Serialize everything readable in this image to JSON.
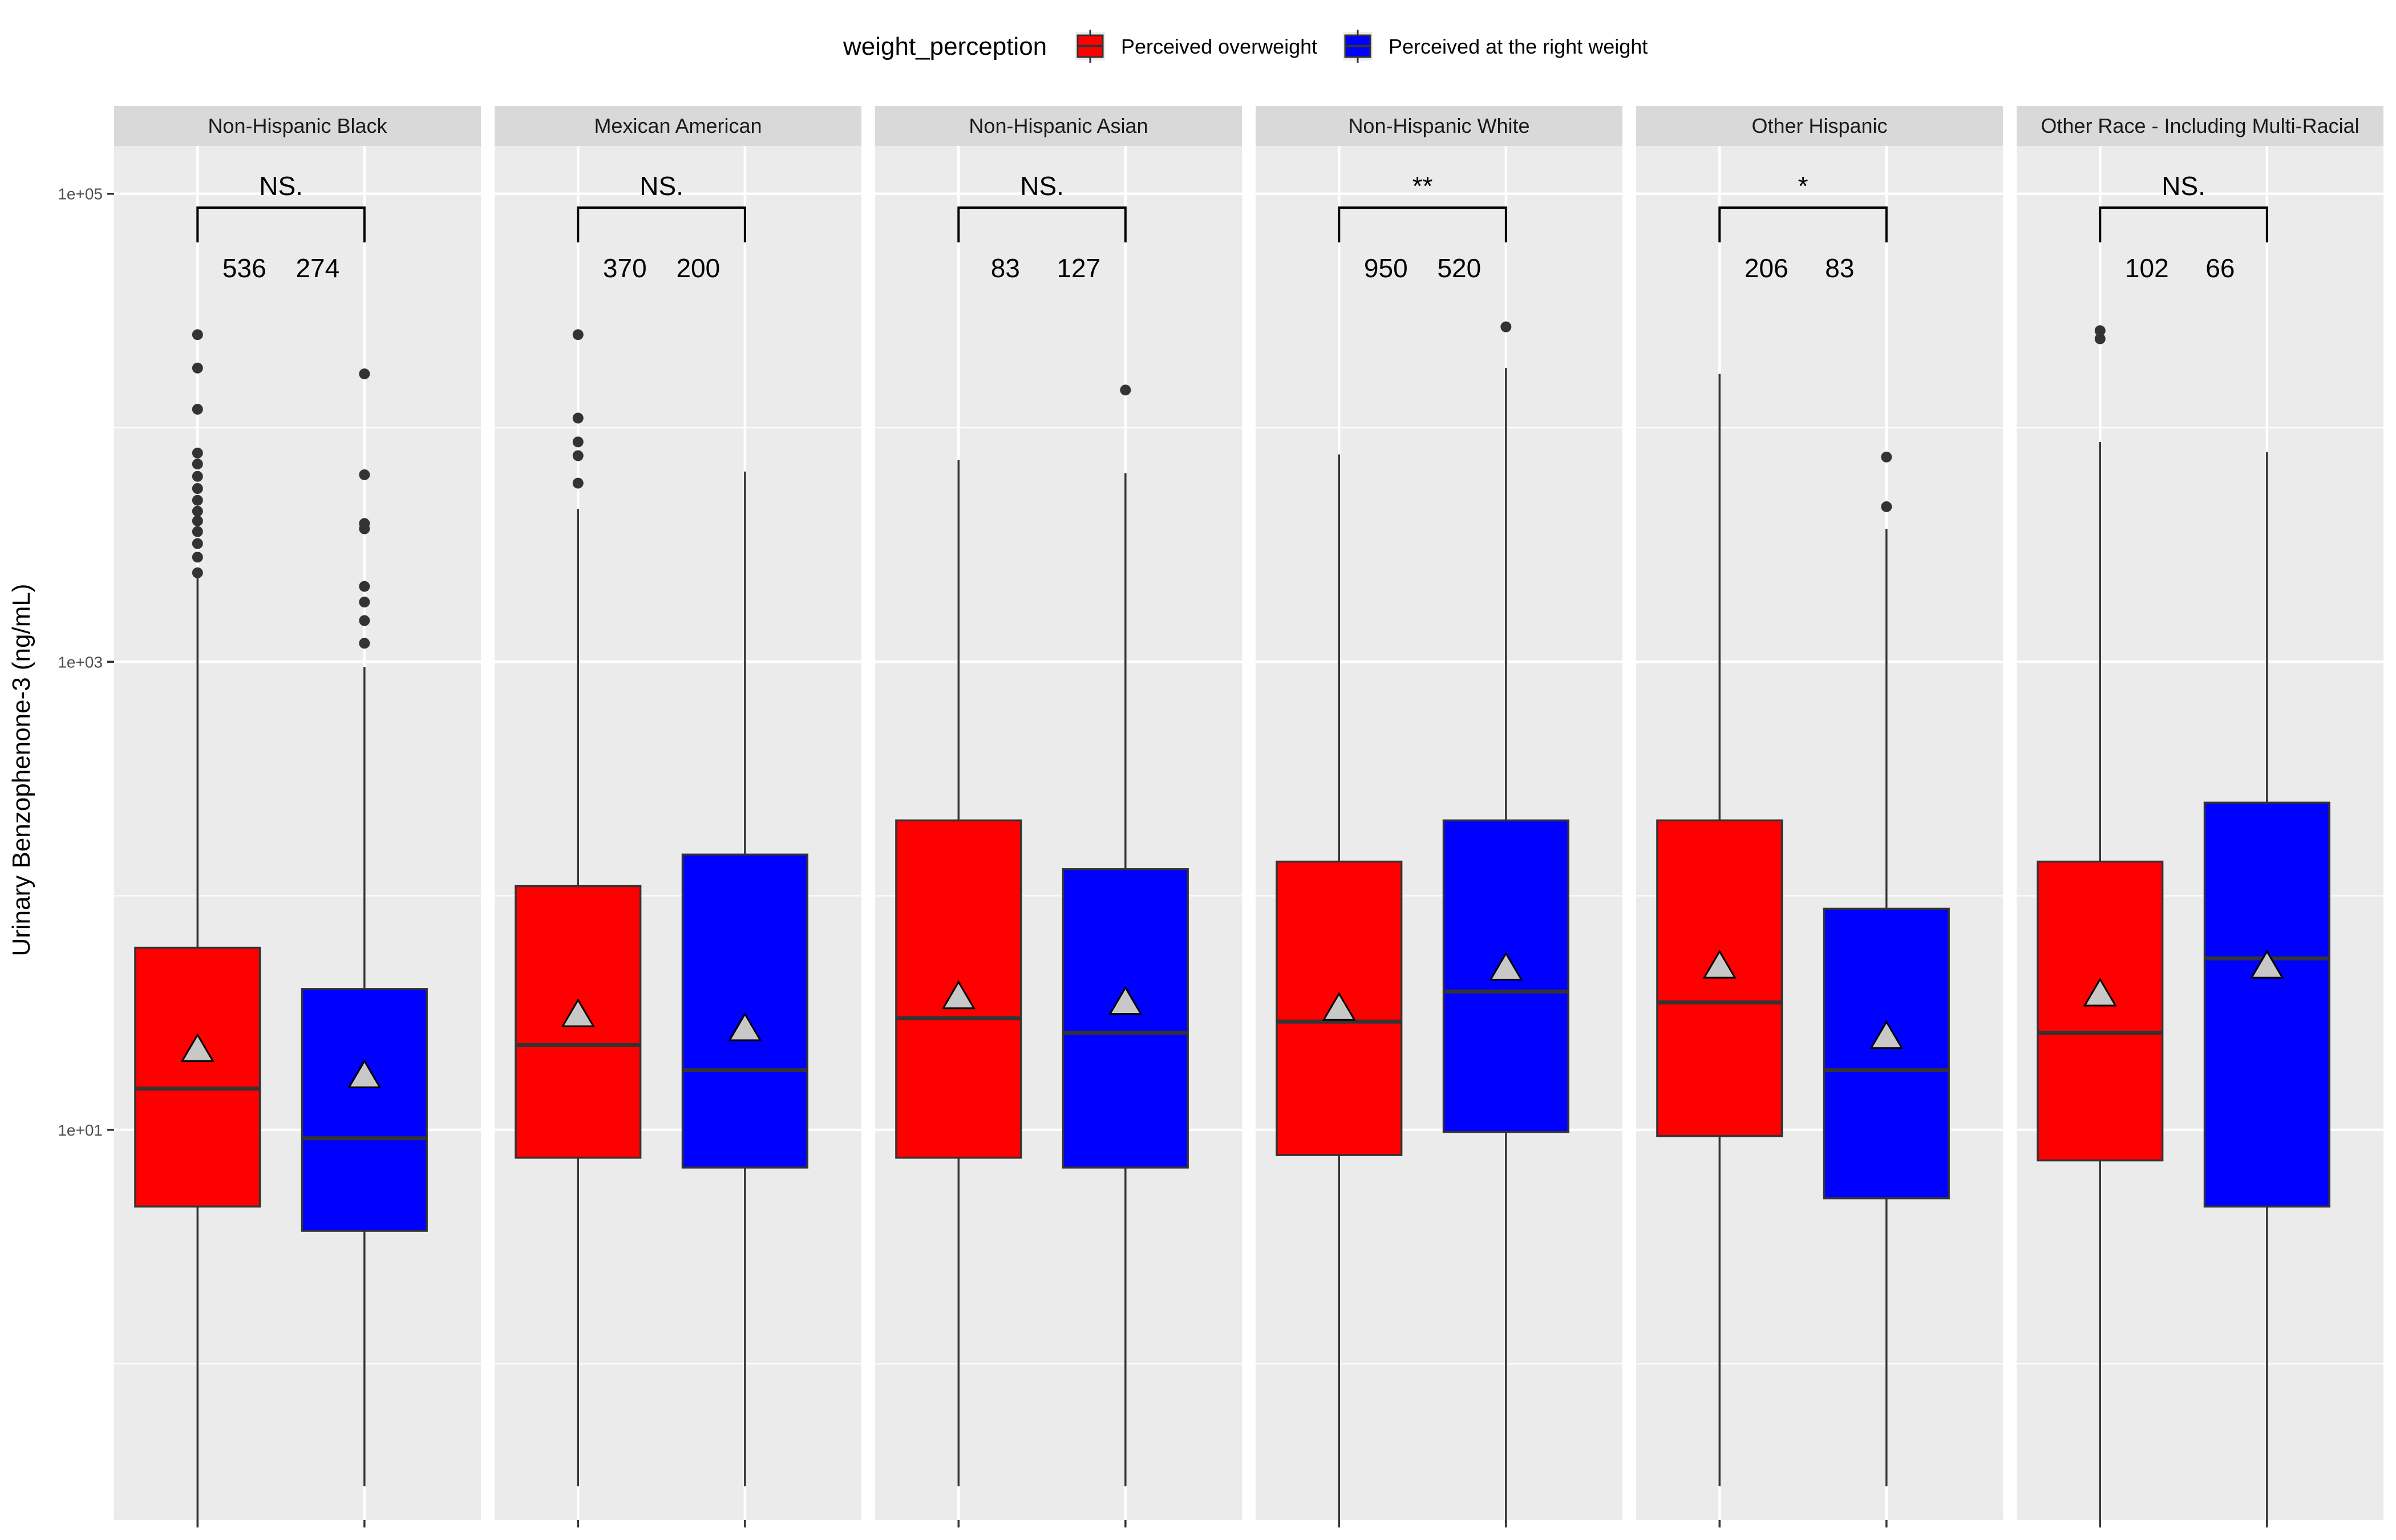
{
  "chart_data": {
    "type": "box",
    "ylabel": "Urinary Benzophenone-3 (ng/mL)",
    "xlabel": "",
    "yscale": "log10",
    "ylim": [
      0.215,
      160000
    ],
    "yticks": [
      10,
      1000,
      100000
    ],
    "ytick_labels": [
      "1e+01",
      "1e+03",
      "1e+05"
    ],
    "grid": true,
    "legend": {
      "title": "weight_perception",
      "position": "top",
      "entries": [
        {
          "key": "overweight",
          "label": "Perceived overweight",
          "color": "#FF0000"
        },
        {
          "key": "right",
          "label": "Perceived at the right weight",
          "color": "#0000FF"
        }
      ]
    },
    "mean_marker": {
      "shape": "triangle",
      "color": "#c8c8c8"
    },
    "panels": [
      {
        "label": "Non-Hispanic Black",
        "significance": "NS.",
        "groups": [
          {
            "series": "overweight",
            "n": "536",
            "whisker_low": 0.21,
            "q1": 4.7,
            "median": 15,
            "q3": 60,
            "whisker_high": 2300,
            "mean": 22,
            "outliers": [
              2400,
              2800,
              3200,
              3600,
              4000,
              4400,
              4900,
              5500,
              6200,
              7000,
              7800,
              12000,
              18000,
              25000
            ]
          },
          {
            "series": "right",
            "n": "274",
            "whisker_low": 0.3,
            "q1": 3.7,
            "median": 9.2,
            "q3": 40,
            "whisker_high": 950,
            "mean": 17,
            "outliers": [
              1200,
              1500,
              1800,
              2100,
              3700,
              3900,
              6300,
              17000
            ]
          }
        ]
      },
      {
        "label": "Mexican American",
        "significance": "NS.",
        "groups": [
          {
            "series": "overweight",
            "n": "370",
            "whisker_low": 0.3,
            "q1": 7.6,
            "median": 23,
            "q3": 110,
            "whisker_high": 4500,
            "mean": 31,
            "outliers": [
              5800,
              7600,
              8700,
              11000,
              25000
            ]
          },
          {
            "series": "right",
            "n": "200",
            "whisker_low": 0.3,
            "q1": 6.9,
            "median": 18,
            "q3": 150,
            "whisker_high": 6500,
            "mean": 27,
            "outliers": []
          }
        ]
      },
      {
        "label": "Non-Hispanic Asian",
        "significance": "NS.",
        "groups": [
          {
            "series": "overweight",
            "n": "83",
            "whisker_low": 0.3,
            "q1": 7.6,
            "median": 30,
            "q3": 210,
            "whisker_high": 7300,
            "mean": 37,
            "outliers": []
          },
          {
            "series": "right",
            "n": "127",
            "whisker_low": 0.3,
            "q1": 6.9,
            "median": 26,
            "q3": 130,
            "whisker_high": 6400,
            "mean": 35,
            "outliers": [
              14500
            ]
          }
        ]
      },
      {
        "label": "Non-Hispanic White",
        "significance": "**",
        "groups": [
          {
            "series": "overweight",
            "n": "950",
            "whisker_low": 0.21,
            "q1": 7.8,
            "median": 29,
            "q3": 140,
            "whisker_high": 7700,
            "mean": 33,
            "outliers": []
          },
          {
            "series": "right",
            "n": "520",
            "whisker_low": 0.21,
            "q1": 9.8,
            "median": 39,
            "q3": 210,
            "whisker_high": 18000,
            "mean": 49,
            "outliers": [
              27000
            ]
          }
        ]
      },
      {
        "label": "Other Hispanic",
        "significance": "*",
        "groups": [
          {
            "series": "overweight",
            "n": "206",
            "whisker_low": 0.3,
            "q1": 9.4,
            "median": 35,
            "q3": 210,
            "whisker_high": 17000,
            "mean": 50,
            "outliers": []
          },
          {
            "series": "right",
            "n": "83",
            "whisker_low": 0.3,
            "q1": 5.1,
            "median": 18,
            "q3": 88,
            "whisker_high": 3700,
            "mean": 25,
            "outliers": [
              4600,
              7500
            ]
          }
        ]
      },
      {
        "label": "Other Race - Including Multi-Racial",
        "significance": "NS.",
        "groups": [
          {
            "series": "overweight",
            "n": "102",
            "whisker_low": 0.21,
            "q1": 7.4,
            "median": 26,
            "q3": 140,
            "whisker_high": 8700,
            "mean": 38,
            "outliers": [
              24000,
              26000
            ]
          },
          {
            "series": "right",
            "n": "66",
            "whisker_low": 0.21,
            "q1": 4.7,
            "median": 54,
            "q3": 250,
            "whisker_high": 7900,
            "mean": 50,
            "outliers": []
          }
        ]
      }
    ]
  }
}
